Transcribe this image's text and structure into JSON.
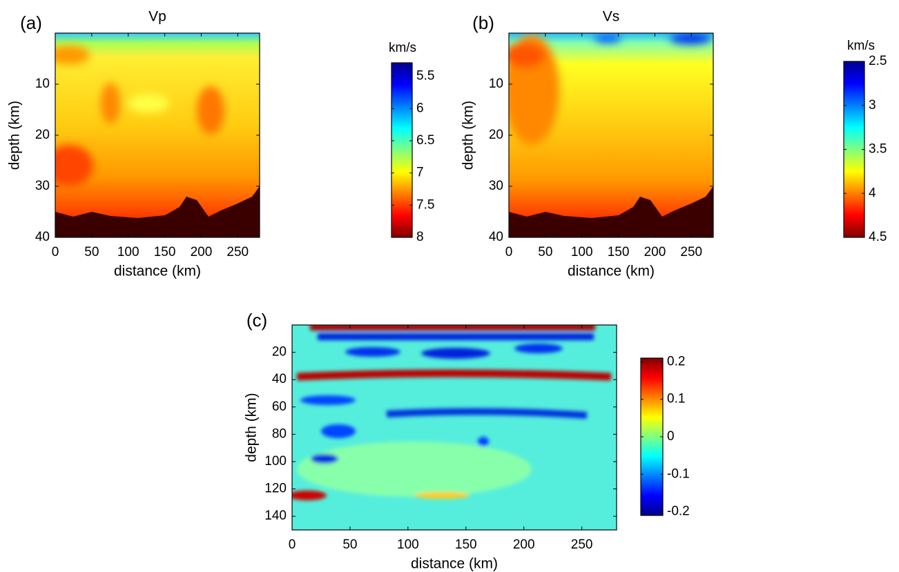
{
  "chart_data": [
    {
      "type": "heatmap",
      "panel_label": "(a)",
      "title": "Vp",
      "x_label": "distance (km)",
      "y_label": "depth (km)",
      "xlim": [
        0,
        280
      ],
      "xticks": [
        0,
        50,
        100,
        150,
        200,
        250
      ],
      "ylim": [
        0,
        40
      ],
      "yticks": [
        10,
        20,
        30,
        40
      ],
      "yreverse": true,
      "colormap": "jet",
      "colorbar_label": "km/s",
      "clim": [
        5.29,
        8
      ],
      "cticks": [
        5.5,
        6,
        6.5,
        7,
        7.5,
        8
      ],
      "colorbar_reversed": true
    },
    {
      "type": "heatmap",
      "panel_label": "(b)",
      "title": "Vs",
      "x_label": "distance (km)",
      "y_label": "depth (km)",
      "xlim": [
        0,
        280
      ],
      "xticks": [
        0,
        50,
        100,
        150,
        200,
        250
      ],
      "ylim": [
        0,
        40
      ],
      "yticks": [
        10,
        20,
        30,
        40
      ],
      "yreverse": true,
      "colormap": "jet",
      "colorbar_label": "km/s",
      "clim": [
        2.5,
        4.5
      ],
      "cticks": [
        2.5,
        3,
        3.5,
        4,
        4.5
      ],
      "colorbar_reversed": true
    },
    {
      "type": "heatmap",
      "panel_label": "(c)",
      "x_label": "distance (km)",
      "y_label": "depth (km)",
      "xlim": [
        0,
        280
      ],
      "xticks": [
        0,
        50,
        100,
        150,
        200,
        250
      ],
      "ylim": [
        0,
        150
      ],
      "yticks": [
        20,
        40,
        60,
        80,
        100,
        120,
        140
      ],
      "yreverse": true,
      "colormap": "jet",
      "clim": [
        -0.21,
        0.21
      ],
      "cticks": [
        0.2,
        0.1,
        0,
        -0.1,
        -0.2
      ],
      "colorbar_reversed": false
    }
  ]
}
